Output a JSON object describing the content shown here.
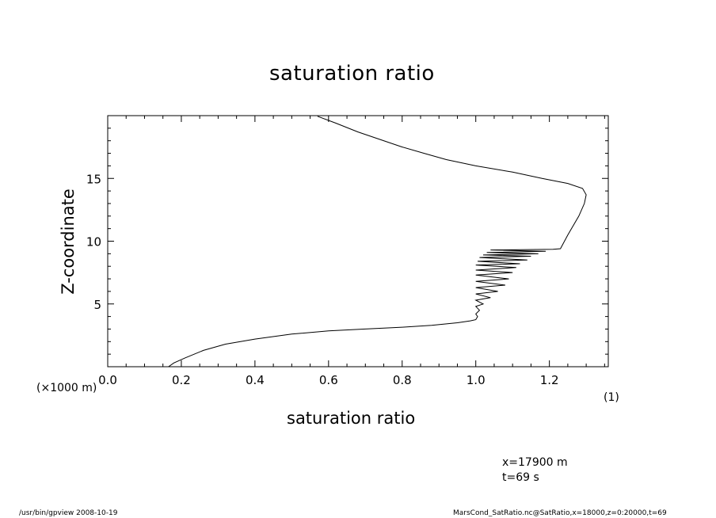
{
  "chart_data": {
    "type": "line",
    "title": "saturation ratio",
    "xlabel": "saturation ratio",
    "ylabel": "Z-coordinate",
    "x_unit": "(1)",
    "y_unit": "(×1000 m)",
    "xlim": [
      0.0,
      1.36
    ],
    "ylim": [
      0.0,
      20.0
    ],
    "x_ticks": [
      "0.0",
      "0.2",
      "0.4",
      "0.6",
      "0.8",
      "1.0",
      "1.2"
    ],
    "y_ticks": [
      "5",
      "10",
      "15"
    ],
    "grid": false,
    "series": [
      {
        "x": [
          0.165,
          0.18,
          0.21,
          0.26,
          0.32,
          0.4,
          0.5,
          0.6,
          0.7,
          0.8,
          0.88,
          0.95,
          0.985,
          1.0,
          1.005,
          1.0,
          1.01,
          1.0,
          1.02,
          1.0,
          1.04,
          1.0,
          1.06,
          1.0,
          1.08,
          1.0,
          1.09,
          1.0,
          1.1,
          1.0,
          1.11,
          1.0,
          1.12,
          1.005,
          1.14,
          1.01,
          1.15,
          1.02,
          1.17,
          1.03,
          1.19,
          1.04,
          1.21,
          1.23,
          1.25,
          1.28,
          1.295,
          1.3,
          1.29,
          1.25,
          1.18,
          1.1,
          1.0,
          0.92,
          0.86,
          0.8,
          0.74,
          0.68,
          0.62,
          0.57
        ],
        "y": [
          0.0,
          0.3,
          0.7,
          1.3,
          1.8,
          2.2,
          2.6,
          2.85,
          3.0,
          3.15,
          3.3,
          3.5,
          3.65,
          3.75,
          4.0,
          4.2,
          4.5,
          4.8,
          5.0,
          5.3,
          5.5,
          5.8,
          6.0,
          6.3,
          6.5,
          6.8,
          7.0,
          7.3,
          7.5,
          7.7,
          7.9,
          8.1,
          8.2,
          8.4,
          8.5,
          8.7,
          8.8,
          8.9,
          9.0,
          9.1,
          9.2,
          9.3,
          9.35,
          9.4,
          10.5,
          12.0,
          13.0,
          13.7,
          14.2,
          14.6,
          15.0,
          15.5,
          16.0,
          16.5,
          17.0,
          17.5,
          18.1,
          18.7,
          19.4,
          19.95
        ]
      }
    ]
  },
  "annotations": {
    "x_info": "x=17900  m",
    "t_info": "t=69  s",
    "footer_left": "/usr/bin/gpview   2008-10-19",
    "footer_right": "MarsCond_SatRatio.nc@SatRatio,x=18000,z=0:20000,t=69"
  }
}
